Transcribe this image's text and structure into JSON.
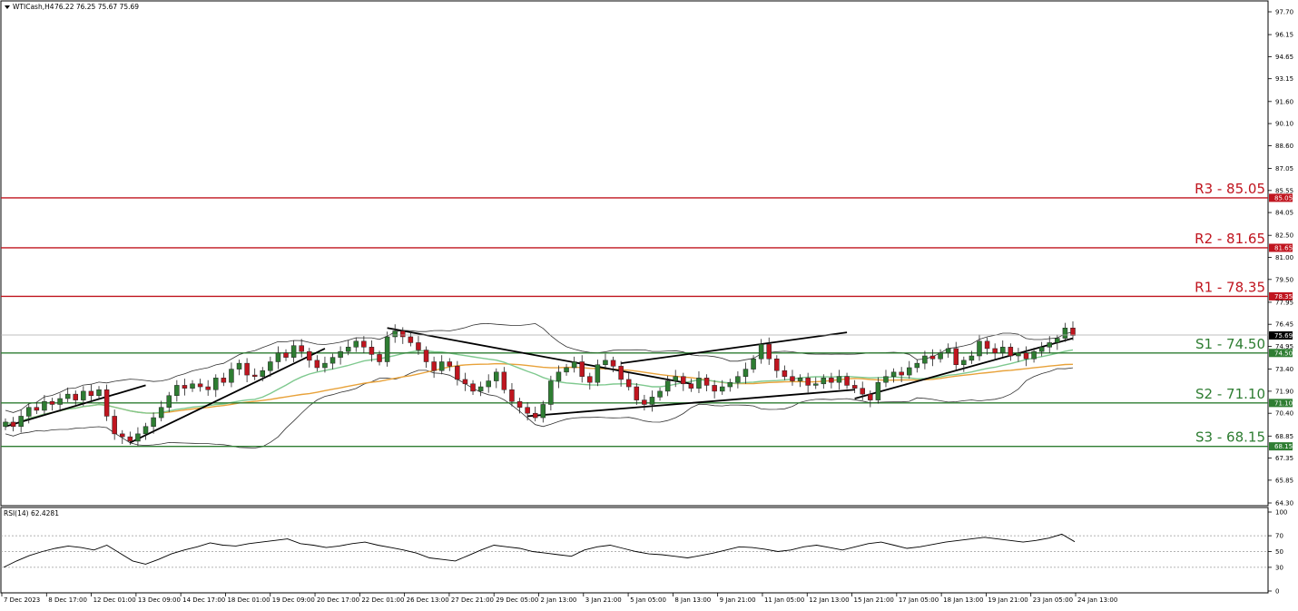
{
  "header": {
    "symbol": "WTICash,H4",
    "ohlc": "76.22 76.25 75.67 75.69"
  },
  "current_price": "75.69",
  "rsi_panel": {
    "label": "RSI(14) 62.4281",
    "levels": [
      "100",
      "70",
      "50",
      "30",
      "0"
    ]
  },
  "colors": {
    "resistance": "#c0151f",
    "support": "#2e7d32",
    "candle_up": "#2e7d32",
    "candle_down": "#c0151f",
    "bollinger": "#333333",
    "ma_fast": "#7fc98f",
    "ma_slow": "#e8a23a",
    "trendline": "#000000",
    "rsi_line": "#000000"
  },
  "chart_data": [
    {
      "type": "candlestick",
      "title": "WTICash,H4",
      "x_tick_labels": [
        "7 Dec 2023",
        "8 Dec 17:00",
        "12 Dec 01:00",
        "13 Dec 09:00",
        "14 Dec 17:00",
        "18 Dec 01:00",
        "19 Dec 09:00",
        "20 Dec 17:00",
        "22 Dec 01:00",
        "26 Dec 13:00",
        "27 Dec 21:00",
        "29 Dec 05:00",
        "2 Jan 13:00",
        "3 Jan 21:00",
        "5 Jan 05:00",
        "8 Jan 13:00",
        "9 Jan 21:00",
        "11 Jan 05:00",
        "12 Jan 13:00",
        "15 Jan 21:00",
        "17 Jan 05:00",
        "18 Jan 13:00",
        "19 Jan 21:00",
        "23 Jan 05:00",
        "24 Jan 13:00"
      ],
      "y_tick_labels": [
        "97.70",
        "96.15",
        "94.65",
        "93.15",
        "91.60",
        "90.10",
        "88.60",
        "87.05",
        "85.55",
        "84.05",
        "82.50",
        "81.00",
        "79.50",
        "77.95",
        "76.45",
        "74.95",
        "73.40",
        "71.90",
        "70.40",
        "68.85",
        "67.35",
        "65.85",
        "64.30"
      ],
      "ylim": [
        64.3,
        97.7
      ],
      "close_series_approx": [
        69.8,
        69.5,
        70.2,
        70.8,
        70.6,
        71.2,
        71.0,
        71.4,
        71.7,
        71.3,
        71.9,
        71.6,
        72.0,
        70.2,
        69.0,
        68.8,
        68.5,
        69.0,
        69.5,
        70.1,
        70.8,
        71.6,
        72.3,
        72.1,
        72.4,
        72.2,
        72.0,
        72.8,
        72.5,
        73.4,
        73.8,
        73.0,
        72.9,
        73.3,
        73.9,
        74.5,
        74.2,
        75.0,
        74.6,
        74.0,
        73.5,
        73.8,
        74.2,
        74.6,
        74.9,
        75.3,
        74.9,
        74.4,
        73.9,
        75.6,
        76.0,
        75.6,
        75.2,
        74.7,
        73.9,
        73.3,
        73.9,
        73.6,
        72.7,
        72.4,
        71.9,
        72.2,
        72.6,
        73.2,
        72.0,
        71.2,
        70.8,
        70.4,
        70.1,
        71.0,
        72.6,
        73.2,
        73.5,
        73.9,
        72.9,
        72.5,
        73.7,
        74.0,
        73.6,
        72.7,
        72.2,
        71.3,
        71.0,
        71.5,
        71.9,
        72.6,
        72.9,
        72.4,
        72.1,
        72.8,
        72.3,
        71.9,
        72.2,
        72.5,
        72.9,
        73.4,
        74.1,
        75.1,
        74.1,
        73.3,
        72.9,
        72.6,
        72.8,
        72.3,
        72.4,
        72.8,
        72.5,
        72.9,
        72.3,
        72.1,
        71.7,
        71.3,
        72.5,
        72.9,
        73.2,
        73.0,
        73.5,
        73.8,
        74.3,
        74.1,
        74.5,
        74.8,
        73.7,
        74.0,
        74.3,
        75.3,
        74.8,
        74.5,
        74.9,
        74.3,
        74.5,
        74.1,
        74.6,
        74.9,
        75.2,
        75.5,
        76.2,
        75.69
      ],
      "horizontal_levels": [
        {
          "label": "R3 - 85.05",
          "value": 85.05,
          "tag": "85.05",
          "kind": "resistance"
        },
        {
          "label": "R2 - 81.65",
          "value": 81.65,
          "tag": "81.65",
          "kind": "resistance"
        },
        {
          "label": "R1 - 78.35",
          "value": 78.35,
          "tag": "78.35",
          "kind": "resistance"
        },
        {
          "label": "S1 - 74.50",
          "value": 74.5,
          "tag": "74.50",
          "kind": "support"
        },
        {
          "label": "S2 - 71.10",
          "value": 71.1,
          "tag": "71.10",
          "kind": "support"
        },
        {
          "label": "S3 - 68.15",
          "value": 68.15,
          "tag": "68.15",
          "kind": "support"
        }
      ],
      "grid": false
    },
    {
      "type": "line",
      "title": "RSI(14) 62.4281",
      "ylim": [
        0,
        100
      ],
      "y_tick_labels": [
        "100",
        "70",
        "50",
        "30",
        "0"
      ],
      "values_approx": [
        30,
        38,
        45,
        50,
        54,
        57,
        55,
        52,
        58,
        48,
        38,
        34,
        40,
        47,
        52,
        56,
        61,
        58,
        57,
        60,
        62,
        64,
        66,
        60,
        58,
        55,
        57,
        60,
        62,
        58,
        55,
        52,
        48,
        42,
        40,
        38,
        45,
        52,
        58,
        56,
        54,
        50,
        48,
        46,
        44,
        52,
        56,
        58,
        54,
        50,
        47,
        46,
        44,
        42,
        45,
        48,
        52,
        56,
        55,
        53,
        50,
        52,
        56,
        58,
        55,
        52,
        56,
        60,
        62,
        58,
        54,
        56,
        59,
        62,
        64,
        66,
        68,
        66,
        64,
        62,
        64,
        67,
        72,
        62.43
      ]
    }
  ]
}
